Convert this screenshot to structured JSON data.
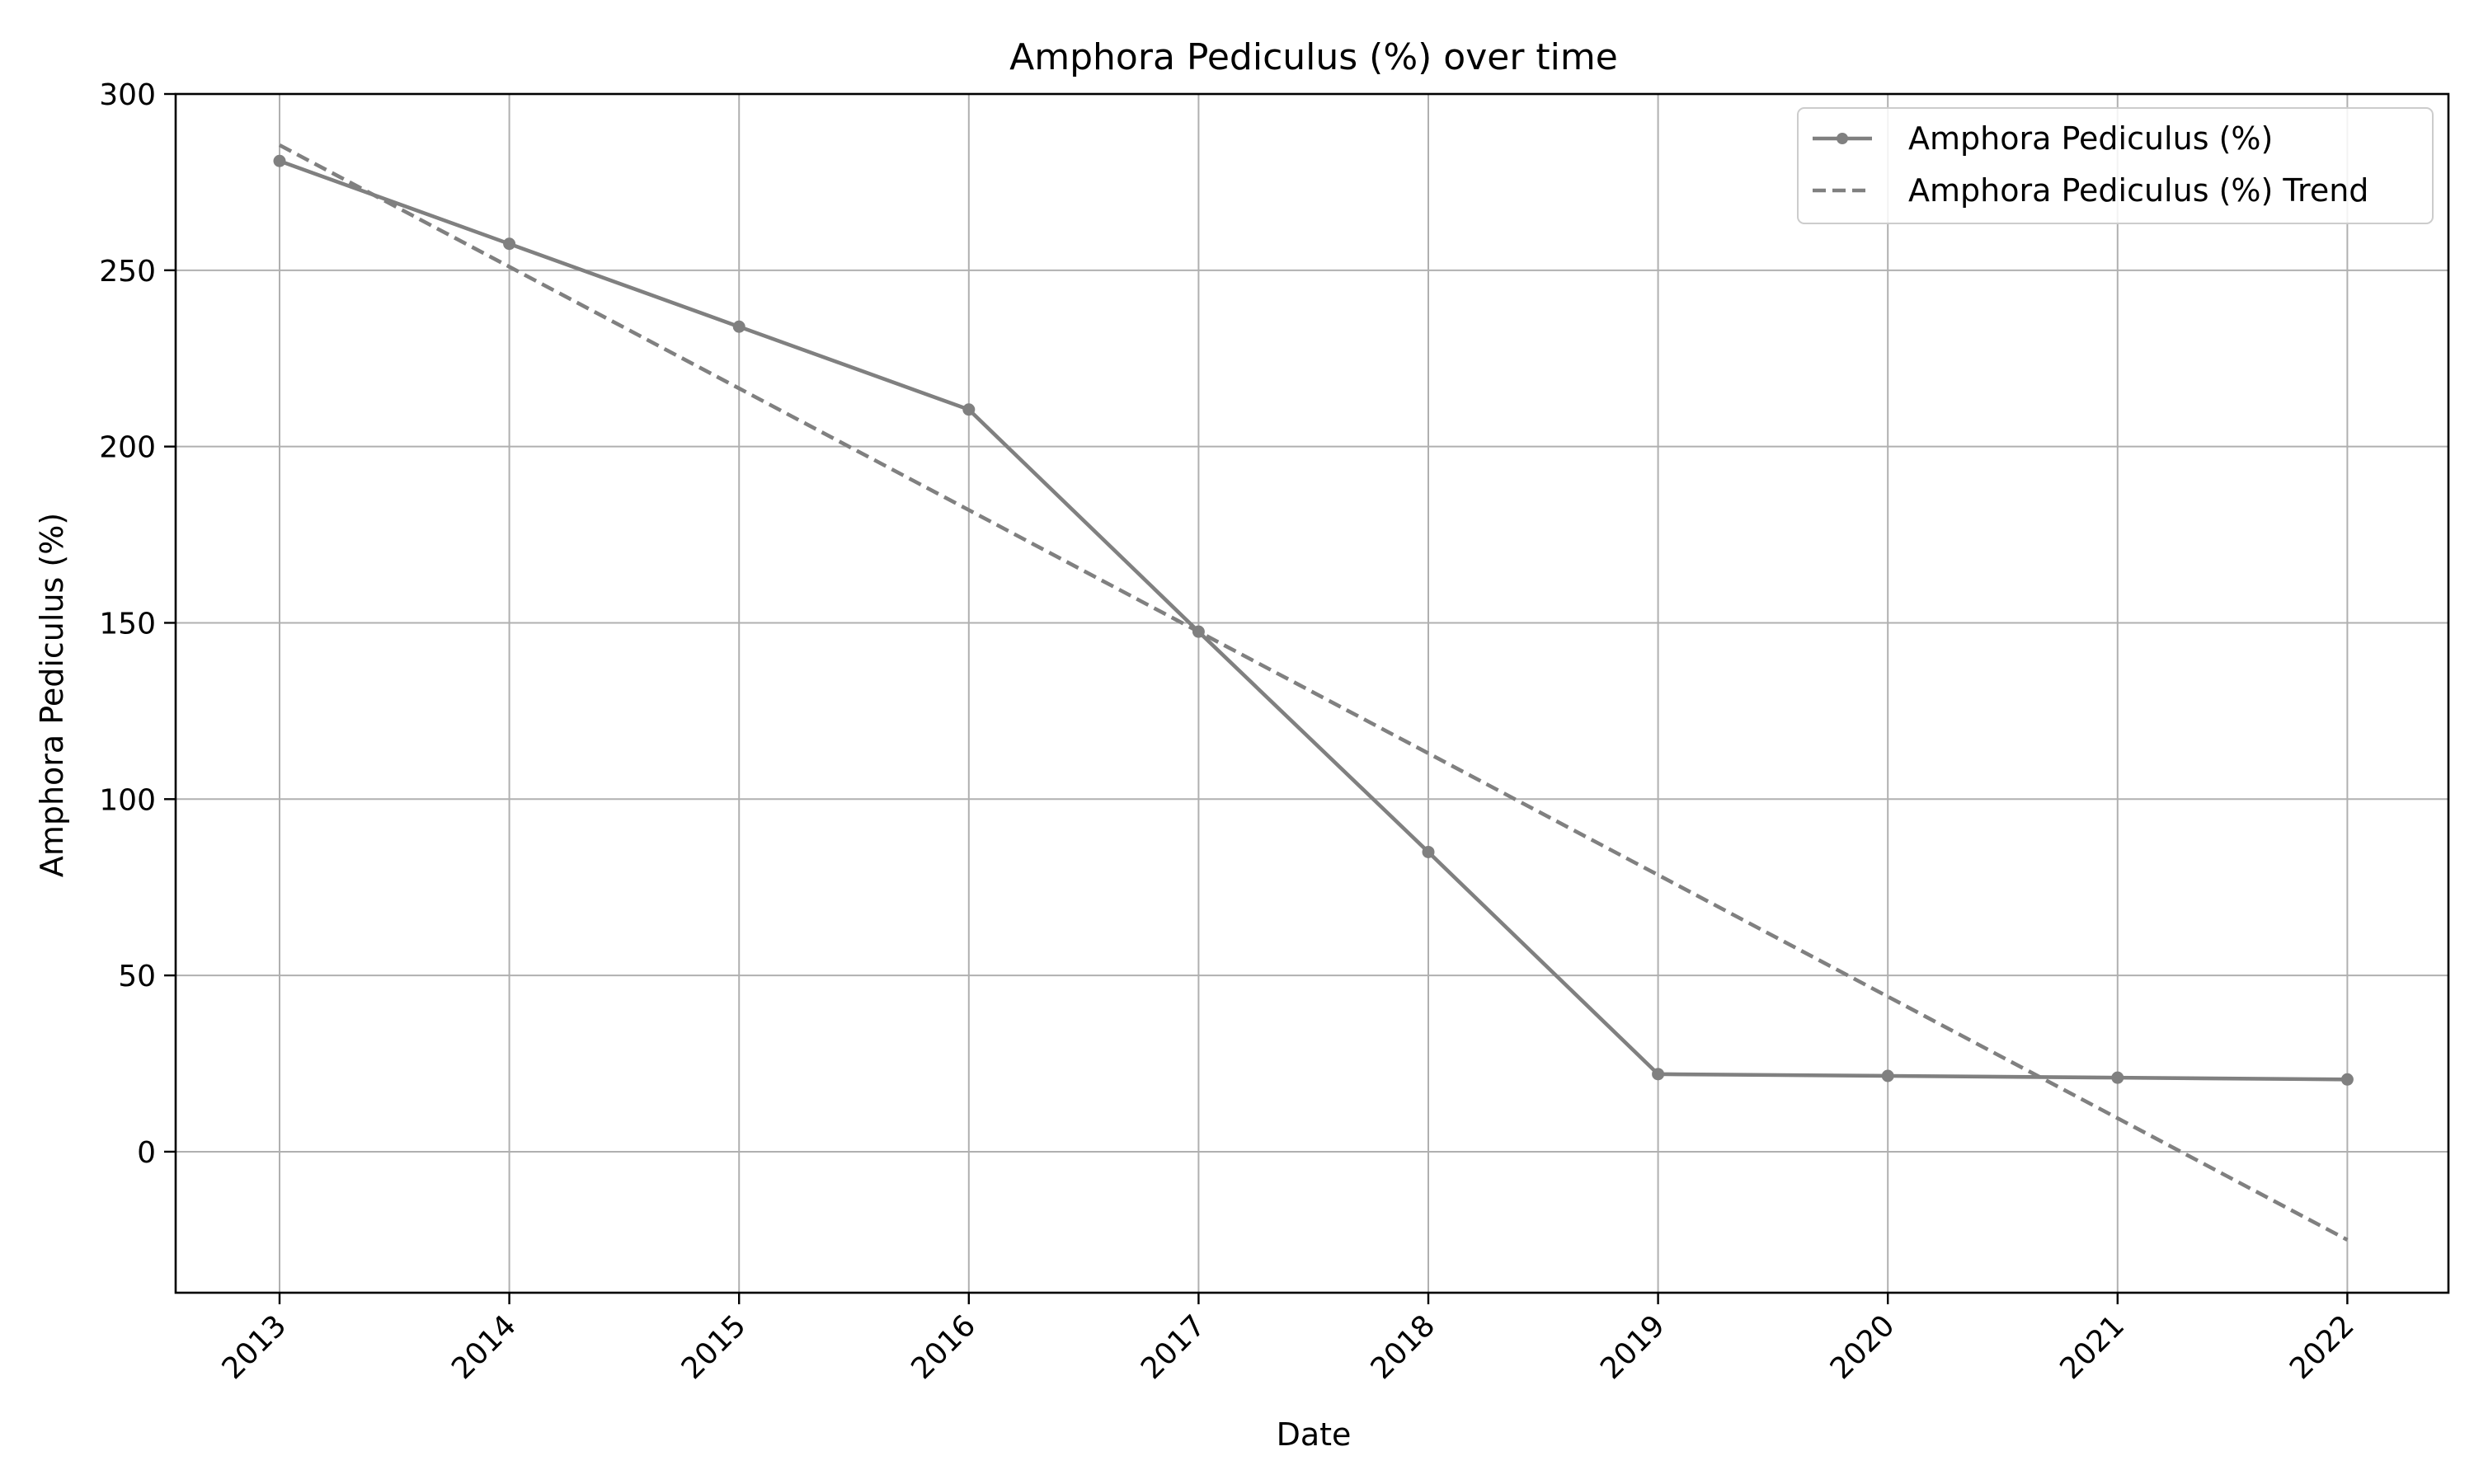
{
  "chart_data": {
    "type": "line",
    "title": "Amphora Pediculus (%) over time",
    "xlabel": "Date",
    "ylabel": "Amphora Pediculus (%)",
    "x": [
      "2013",
      "2014",
      "2015",
      "2016",
      "2017",
      "2018",
      "2019",
      "2020",
      "2021",
      "2022"
    ],
    "ylim": [
      -40,
      300
    ],
    "yticks": [
      0,
      50,
      100,
      150,
      200,
      250,
      300
    ],
    "grid": true,
    "legend_position": "top-right",
    "series": [
      {
        "name": "Amphora Pediculus (%)",
        "style": "solid-with-markers",
        "color": "#808080",
        "values": [
          281,
          257.5,
          234,
          210.5,
          147.5,
          85,
          22,
          21.5,
          21,
          20.5
        ]
      },
      {
        "name": "Amphora Pediculus (%) Trend",
        "style": "dashed",
        "color": "#808080",
        "values": [
          285.5,
          251,
          216.5,
          182,
          147.5,
          113,
          78.5,
          44,
          9.5,
          -25
        ]
      }
    ]
  }
}
